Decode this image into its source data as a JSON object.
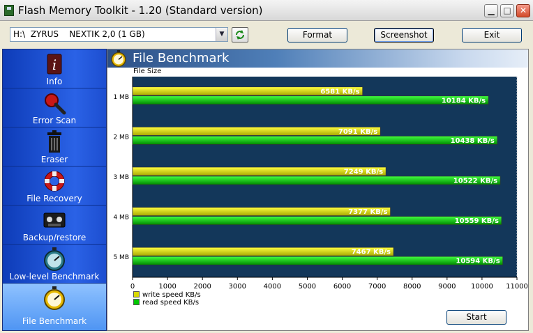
{
  "window": {
    "title": "Flash Memory Toolkit - 1.20 (Standard version)",
    "minimize_glyph": "▁",
    "maximize_glyph": "□",
    "close_glyph": "✕"
  },
  "toolbar": {
    "drive_selected": "H:\\  ZYRUS    NEXTIK 2,0 (1 GB)",
    "format_label": "Format",
    "screenshot_label": "Screenshot",
    "exit_label": "Exit"
  },
  "sidebar": {
    "items": [
      {
        "label": "Info",
        "icon": "info-icon"
      },
      {
        "label": "Error Scan",
        "icon": "magnifier-icon"
      },
      {
        "label": "Eraser",
        "icon": "trash-icon"
      },
      {
        "label": "File Recovery",
        "icon": "lifebuoy-icon"
      },
      {
        "label": "Backup/restore",
        "icon": "tape-icon"
      },
      {
        "label": "Low-level Benchmark",
        "icon": "stopwatch-icon"
      },
      {
        "label": "File Benchmark",
        "icon": "stopwatch-icon"
      }
    ],
    "selected_index": 6
  },
  "panel": {
    "title": "File Benchmark"
  },
  "chart_data": {
    "type": "bar",
    "orientation": "horizontal",
    "ylabel": "File Size",
    "categories": [
      "1 MB",
      "2 MB",
      "3 MB",
      "4 MB",
      "5 MB"
    ],
    "series": [
      {
        "name": "write speed KB/s",
        "values": [
          6581,
          7091,
          7249,
          7377,
          7467
        ],
        "color": "#d8d800"
      },
      {
        "name": "read speed KB/s",
        "values": [
          10184,
          10438,
          10522,
          10559,
          10594
        ],
        "color": "#00c800"
      }
    ],
    "value_label_suffix": " KB/s",
    "xlim": [
      0,
      11000
    ],
    "xticks": [
      "0",
      "1000",
      "2000",
      "3000",
      "4000",
      "5000",
      "6000",
      "7000",
      "8000",
      "9000",
      "10000",
      "11000"
    ],
    "plot_background": "#13375a",
    "legend_position": "bottom-left",
    "grid": false
  },
  "actions": {
    "start_label": "Start"
  }
}
